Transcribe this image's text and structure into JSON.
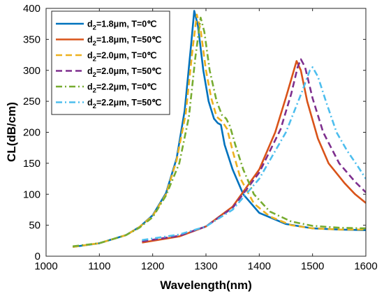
{
  "chart_data": {
    "type": "line",
    "xlabel": "Wavelength(nm)",
    "ylabel": "CL(dB/cm)",
    "xlim": [
      1000,
      1600
    ],
    "ylim": [
      0,
      400
    ],
    "xticks": [
      1000,
      1100,
      1200,
      1300,
      1400,
      1500,
      1600
    ],
    "yticks": [
      0,
      50,
      100,
      150,
      200,
      250,
      300,
      350,
      400
    ],
    "grid": false,
    "legend_position": "top-left",
    "series": [
      {
        "name_prefix": "d",
        "name_sub": "2",
        "name_suffix": "=1.8μm, T=0℃",
        "color": "#0072BD",
        "dash": "solid",
        "points": [
          [
            1050,
            15
          ],
          [
            1100,
            21
          ],
          [
            1150,
            34
          ],
          [
            1175,
            47
          ],
          [
            1200,
            66
          ],
          [
            1225,
            102
          ],
          [
            1245,
            158
          ],
          [
            1260,
            235
          ],
          [
            1272,
            340
          ],
          [
            1278,
            396
          ],
          [
            1285,
            372
          ],
          [
            1295,
            300
          ],
          [
            1305,
            250
          ],
          [
            1315,
            222
          ],
          [
            1322,
            215
          ],
          [
            1328,
            212
          ],
          [
            1335,
            180
          ],
          [
            1350,
            140
          ],
          [
            1370,
            100
          ],
          [
            1400,
            70
          ],
          [
            1450,
            52
          ],
          [
            1500,
            45
          ],
          [
            1550,
            43
          ],
          [
            1600,
            42
          ]
        ]
      },
      {
        "name_prefix": "d",
        "name_sub": "2",
        "name_suffix": "=1.8μm, T=50℃",
        "color": "#D95319",
        "dash": "solid",
        "points": [
          [
            1180,
            22
          ],
          [
            1250,
            32
          ],
          [
            1300,
            48
          ],
          [
            1350,
            80
          ],
          [
            1400,
            140
          ],
          [
            1430,
            200
          ],
          [
            1450,
            256
          ],
          [
            1465,
            300
          ],
          [
            1470,
            315
          ],
          [
            1478,
            300
          ],
          [
            1490,
            250
          ],
          [
            1510,
            190
          ],
          [
            1530,
            150
          ],
          [
            1560,
            118
          ],
          [
            1580,
            100
          ],
          [
            1600,
            86
          ]
        ]
      },
      {
        "name_prefix": "d",
        "name_sub": "2",
        "name_suffix": "=2.0μm, T=0℃",
        "color": "#EDB120",
        "dash": "dash",
        "points": [
          [
            1050,
            15
          ],
          [
            1100,
            21
          ],
          [
            1150,
            34
          ],
          [
            1175,
            47
          ],
          [
            1200,
            65
          ],
          [
            1225,
            100
          ],
          [
            1245,
            155
          ],
          [
            1262,
            230
          ],
          [
            1275,
            335
          ],
          [
            1283,
            390
          ],
          [
            1290,
            365
          ],
          [
            1300,
            300
          ],
          [
            1310,
            255
          ],
          [
            1320,
            225
          ],
          [
            1330,
            218
          ],
          [
            1340,
            205
          ],
          [
            1350,
            170
          ],
          [
            1365,
            125
          ],
          [
            1390,
            85
          ],
          [
            1420,
            64
          ],
          [
            1460,
            50
          ],
          [
            1500,
            45
          ],
          [
            1550,
            43
          ],
          [
            1600,
            43
          ]
        ]
      },
      {
        "name_prefix": "d",
        "name_sub": "2",
        "name_suffix": "=2.0μm, T=50℃",
        "color": "#7E2F8E",
        "dash": "dash",
        "points": [
          [
            1180,
            24
          ],
          [
            1250,
            33
          ],
          [
            1300,
            48
          ],
          [
            1350,
            78
          ],
          [
            1400,
            135
          ],
          [
            1440,
            205
          ],
          [
            1460,
            262
          ],
          [
            1472,
            305
          ],
          [
            1478,
            318
          ],
          [
            1486,
            305
          ],
          [
            1500,
            255
          ],
          [
            1520,
            200
          ],
          [
            1550,
            150
          ],
          [
            1580,
            120
          ],
          [
            1600,
            103
          ]
        ]
      },
      {
        "name_prefix": "d",
        "name_sub": "2",
        "name_suffix": "=2.2μm, T=0℃",
        "color": "#77AC30",
        "dash": "dashdot",
        "points": [
          [
            1050,
            16
          ],
          [
            1100,
            21
          ],
          [
            1150,
            34
          ],
          [
            1175,
            46
          ],
          [
            1200,
            63
          ],
          [
            1225,
            98
          ],
          [
            1250,
            150
          ],
          [
            1268,
            225
          ],
          [
            1280,
            320
          ],
          [
            1290,
            385
          ],
          [
            1297,
            362
          ],
          [
            1307,
            300
          ],
          [
            1320,
            250
          ],
          [
            1330,
            228
          ],
          [
            1338,
            222
          ],
          [
            1345,
            210
          ],
          [
            1355,
            180
          ],
          [
            1370,
            140
          ],
          [
            1390,
            100
          ],
          [
            1420,
            72
          ],
          [
            1460,
            56
          ],
          [
            1500,
            49
          ],
          [
            1550,
            46
          ],
          [
            1600,
            45
          ]
        ]
      },
      {
        "name_prefix": "d",
        "name_sub": "2",
        "name_suffix": "=2.2μm, T=50℃",
        "color": "#4DBEEE",
        "dash": "dashdot",
        "points": [
          [
            1180,
            26
          ],
          [
            1250,
            35
          ],
          [
            1300,
            48
          ],
          [
            1350,
            75
          ],
          [
            1400,
            125
          ],
          [
            1450,
            200
          ],
          [
            1480,
            265
          ],
          [
            1495,
            300
          ],
          [
            1500,
            305
          ],
          [
            1510,
            290
          ],
          [
            1525,
            250
          ],
          [
            1545,
            200
          ],
          [
            1565,
            170
          ],
          [
            1585,
            145
          ],
          [
            1600,
            125
          ]
        ]
      }
    ]
  }
}
